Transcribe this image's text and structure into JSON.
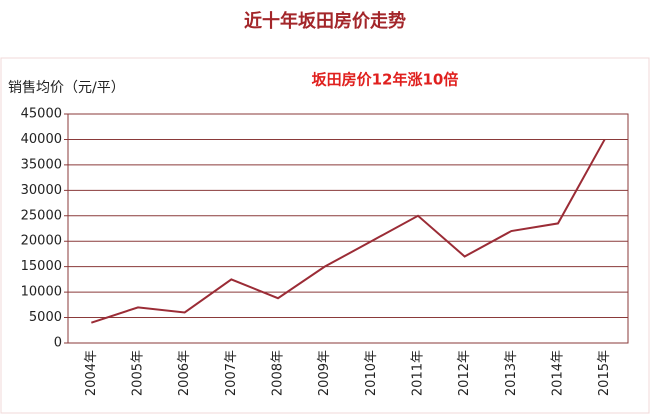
{
  "chart_data": {
    "type": "line",
    "title": "近十年坂田房价走势",
    "y_label": "销售均价（元/平）",
    "annotation": "坂田房价12年涨10倍",
    "categories": [
      "2004年",
      "2005年",
      "2006年",
      "2007年",
      "2008年",
      "2009年",
      "2010年",
      "2011年",
      "2012年",
      "2013年",
      "2014年",
      "2015年"
    ],
    "values": [
      4000,
      7000,
      6000,
      12500,
      8800,
      15000,
      20000,
      25000,
      17000,
      22000,
      23500,
      40000
    ],
    "color": "#9b2c36",
    "ylim": [
      0,
      45000
    ],
    "yticks": [
      0,
      5000,
      10000,
      15000,
      20000,
      25000,
      30000,
      35000,
      40000,
      45000
    ],
    "grid": true
  }
}
